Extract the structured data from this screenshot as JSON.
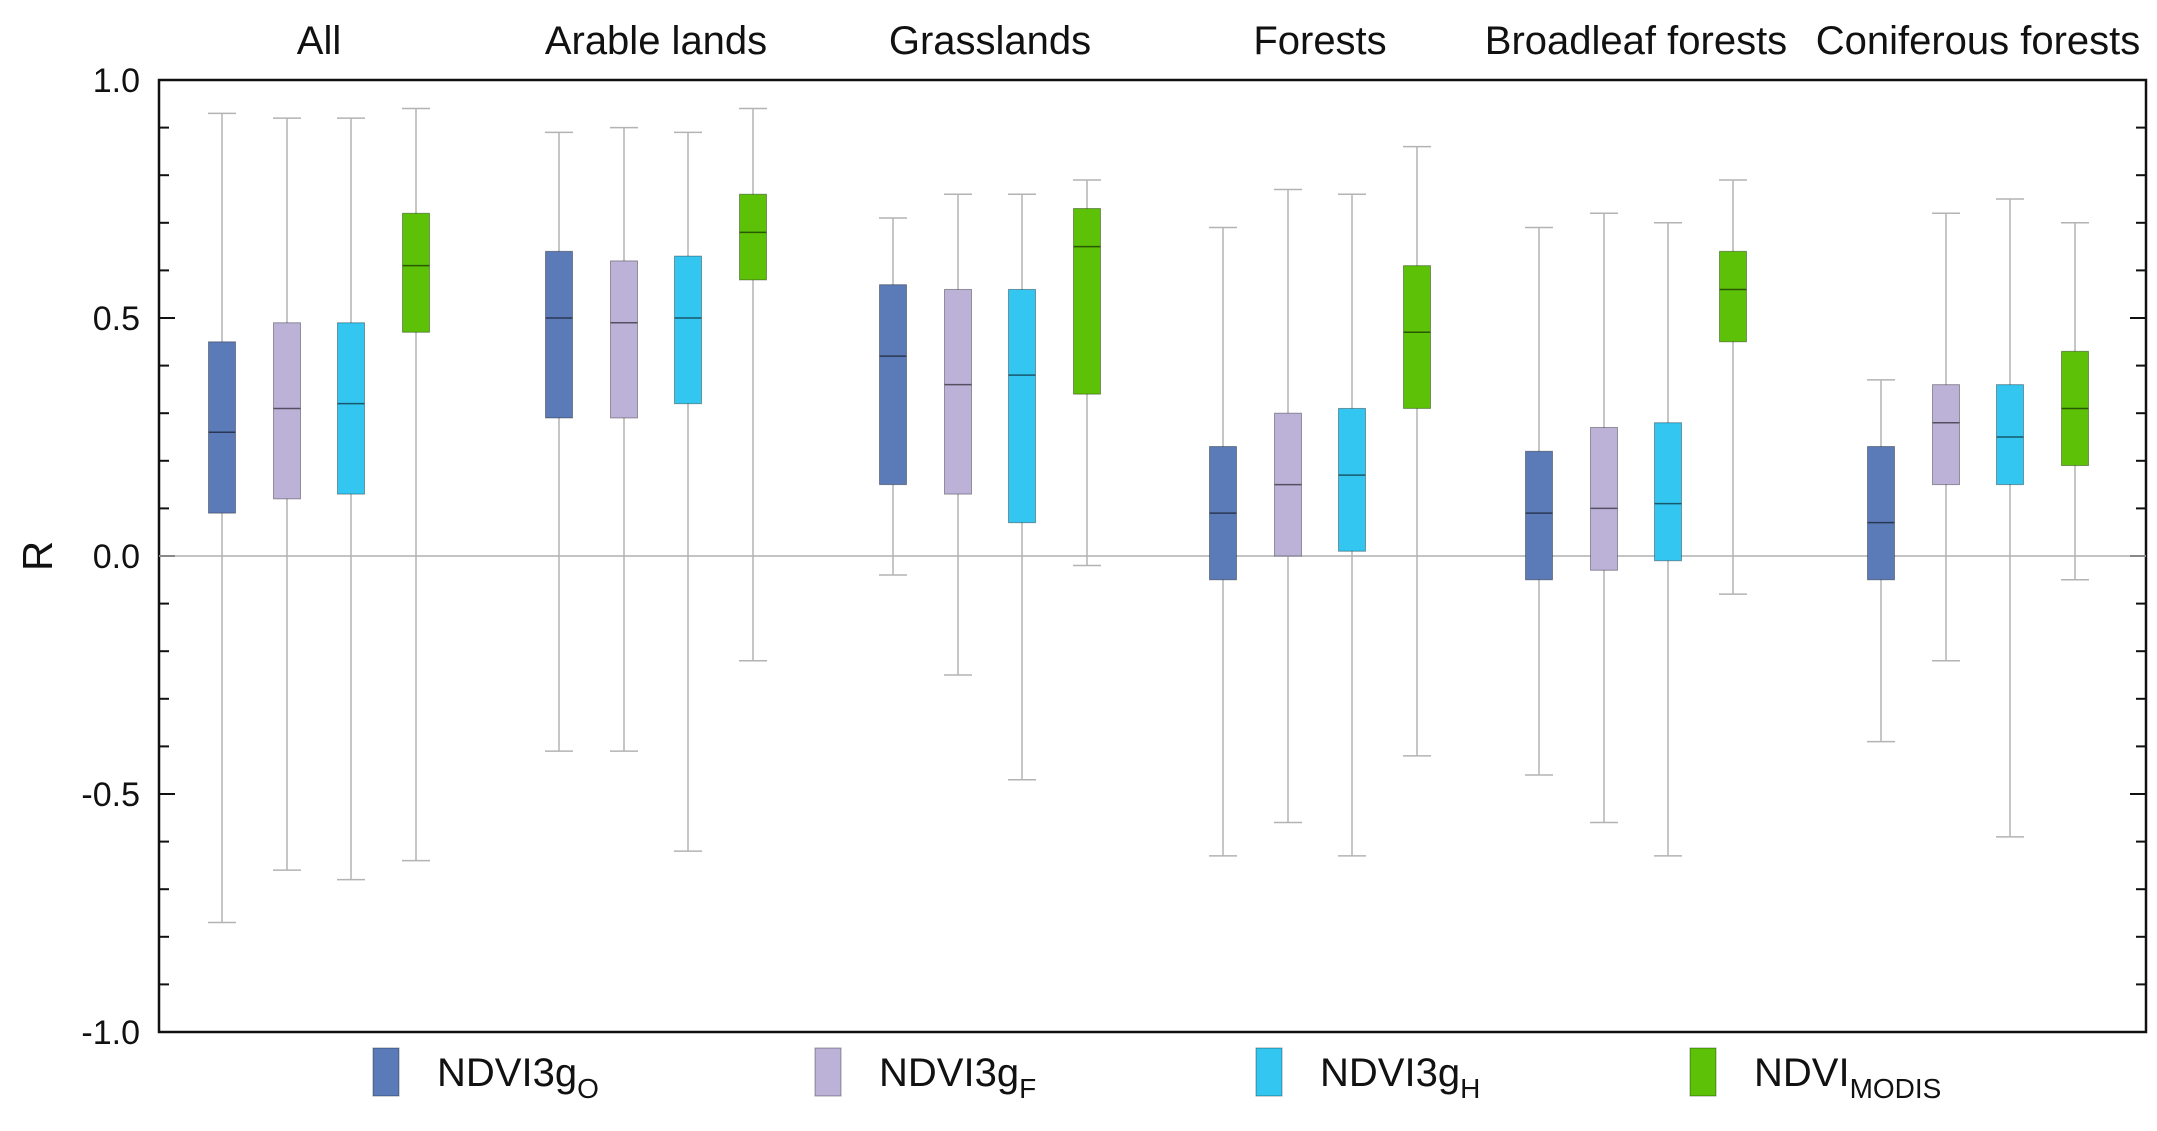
{
  "chart_data": {
    "type": "boxplot",
    "title": "",
    "ylabel": "R",
    "xlabel": "",
    "ylim": [
      -1.0,
      1.0
    ],
    "yticks": [
      -1.0,
      -0.5,
      0.0,
      0.5,
      1.0
    ],
    "ytick_labels": [
      "-1.0",
      "-0.5",
      "0.0",
      "0.5",
      "1.0"
    ],
    "grid": false,
    "zero_line": true,
    "legend_position": "bottom",
    "groups": [
      "All",
      "Arable lands",
      "Grasslands",
      "Forests",
      "Broadleaf forests",
      "Coniferous forests"
    ],
    "series": [
      {
        "name": "NDVI3gO",
        "label_main": "NDVI3g",
        "label_sub": "O",
        "color": "#5b7bb8",
        "boxes": [
          {
            "min": -0.77,
            "q1": 0.09,
            "median": 0.26,
            "q3": 0.45,
            "max": 0.93
          },
          {
            "min": -0.41,
            "q1": 0.29,
            "median": 0.5,
            "q3": 0.64,
            "max": 0.89
          },
          {
            "min": -0.04,
            "q1": 0.15,
            "median": 0.42,
            "q3": 0.57,
            "max": 0.71
          },
          {
            "min": -0.63,
            "q1": -0.05,
            "median": 0.09,
            "q3": 0.23,
            "max": 0.69
          },
          {
            "min": -0.46,
            "q1": -0.05,
            "median": 0.09,
            "q3": 0.22,
            "max": 0.69
          },
          {
            "min": -0.39,
            "q1": -0.05,
            "median": 0.07,
            "q3": 0.23,
            "max": 0.37
          }
        ]
      },
      {
        "name": "NDVI3gF",
        "label_main": "NDVI3g",
        "label_sub": "F",
        "color": "#bcb2d8",
        "boxes": [
          {
            "min": -0.66,
            "q1": 0.12,
            "median": 0.31,
            "q3": 0.49,
            "max": 0.92
          },
          {
            "min": -0.41,
            "q1": 0.29,
            "median": 0.49,
            "q3": 0.62,
            "max": 0.9
          },
          {
            "min": -0.25,
            "q1": 0.13,
            "median": 0.36,
            "q3": 0.56,
            "max": 0.76
          },
          {
            "min": -0.56,
            "q1": 0.0,
            "median": 0.15,
            "q3": 0.3,
            "max": 0.77
          },
          {
            "min": -0.56,
            "q1": -0.03,
            "median": 0.1,
            "q3": 0.27,
            "max": 0.72
          },
          {
            "min": -0.22,
            "q1": 0.15,
            "median": 0.28,
            "q3": 0.36,
            "max": 0.72
          }
        ]
      },
      {
        "name": "NDVI3gH",
        "label_main": "NDVI3g",
        "label_sub": "H",
        "color": "#33c6f0",
        "boxes": [
          {
            "min": -0.68,
            "q1": 0.13,
            "median": 0.32,
            "q3": 0.49,
            "max": 0.92
          },
          {
            "min": -0.62,
            "q1": 0.32,
            "median": 0.5,
            "q3": 0.63,
            "max": 0.89
          },
          {
            "min": -0.47,
            "q1": 0.07,
            "median": 0.38,
            "q3": 0.56,
            "max": 0.76
          },
          {
            "min": -0.63,
            "q1": 0.01,
            "median": 0.17,
            "q3": 0.31,
            "max": 0.76
          },
          {
            "min": -0.63,
            "q1": -0.01,
            "median": 0.11,
            "q3": 0.28,
            "max": 0.7
          },
          {
            "min": -0.59,
            "q1": 0.15,
            "median": 0.25,
            "q3": 0.36,
            "max": 0.75
          }
        ]
      },
      {
        "name": "NDVIMODIS",
        "label_main": "NDVI",
        "label_sub": "MODIS",
        "color": "#5cc107",
        "boxes": [
          {
            "min": -0.64,
            "q1": 0.47,
            "median": 0.61,
            "q3": 0.72,
            "max": 0.94
          },
          {
            "min": -0.22,
            "q1": 0.58,
            "median": 0.68,
            "q3": 0.76,
            "max": 0.94
          },
          {
            "min": -0.02,
            "q1": 0.34,
            "median": 0.65,
            "q3": 0.73,
            "max": 0.79
          },
          {
            "min": -0.42,
            "q1": 0.31,
            "median": 0.47,
            "q3": 0.61,
            "max": 0.86
          },
          {
            "min": -0.08,
            "q1": 0.45,
            "median": 0.56,
            "q3": 0.64,
            "max": 0.79
          },
          {
            "min": -0.05,
            "q1": 0.19,
            "median": 0.31,
            "q3": 0.43,
            "max": 0.7
          }
        ]
      }
    ]
  }
}
